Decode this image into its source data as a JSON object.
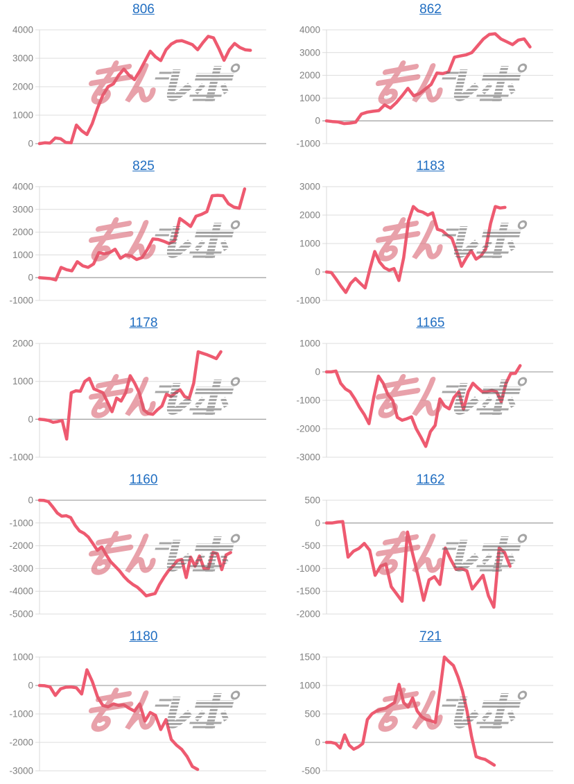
{
  "colors": {
    "line": "#ee5a70",
    "gridline": "#dcdcdc",
    "zero_line": "#a6a6a6",
    "vertical_axis": "#d9d9d9",
    "axis_label": "#7f7f7f",
    "title_link": "#1f6dc1",
    "watermark_pink": "#d85f6e",
    "watermark_gray": "#666666",
    "background": "#ffffff"
  },
  "watermark": {
    "name": "minrepo-watermark",
    "pink_text": "みん",
    "gray_text": "レポ"
  },
  "chart_data": [
    {
      "type": "line",
      "title": "806",
      "ylim": [
        0,
        4000
      ],
      "yticks": [
        4000,
        3000,
        2000,
        1000,
        0
      ],
      "x_slots": 44,
      "values": [
        0,
        30,
        20,
        200,
        170,
        40,
        30,
        650,
        450,
        320,
        700,
        1250,
        1700,
        2000,
        2100,
        2400,
        2620,
        2400,
        2250,
        2550,
        2900,
        3250,
        3050,
        2920,
        3300,
        3500,
        3600,
        3620,
        3550,
        3480,
        3300,
        3550,
        3770,
        3720,
        3350,
        2930,
        3300,
        3520,
        3380,
        3300,
        3280
      ]
    },
    {
      "type": "line",
      "title": "862",
      "ylim": [
        -1000,
        4000
      ],
      "yticks": [
        4000,
        3000,
        2000,
        1000,
        0,
        -1000
      ],
      "x_slots": 40,
      "values": [
        0,
        -30,
        -50,
        -120,
        -100,
        -60,
        300,
        380,
        420,
        450,
        700,
        560,
        800,
        1100,
        1430,
        1100,
        1200,
        1400,
        1600,
        2100,
        2080,
        2150,
        2800,
        2850,
        2900,
        3000,
        3300,
        3600,
        3800,
        3830,
        3600,
        3480,
        3350,
        3550,
        3600,
        3250
      ]
    },
    {
      "type": "line",
      "title": "825",
      "ylim": [
        -1000,
        4000
      ],
      "yticks": [
        4000,
        3000,
        2000,
        1000,
        0,
        -1000
      ],
      "x_slots": 43,
      "values": [
        0,
        -20,
        -40,
        -100,
        450,
        350,
        300,
        700,
        520,
        450,
        600,
        1100,
        1050,
        1100,
        1250,
        850,
        1000,
        950,
        800,
        880,
        1250,
        1700,
        1680,
        1600,
        1500,
        1620,
        2600,
        2430,
        2250,
        2700,
        2780,
        2900,
        3600,
        3620,
        3600,
        3250,
        3100,
        3050,
        3900
      ]
    },
    {
      "type": "line",
      "title": "1183",
      "ylim": [
        -1000,
        3000
      ],
      "yticks": [
        3000,
        2000,
        1000,
        0,
        -1000
      ],
      "x_slots": 48,
      "values": [
        0,
        -20,
        -250,
        -500,
        -720,
        -400,
        -230,
        -400,
        -560,
        100,
        720,
        350,
        150,
        60,
        120,
        -300,
        500,
        1800,
        2300,
        2150,
        2100,
        2000,
        2080,
        1500,
        1450,
        1300,
        1180,
        700,
        200,
        500,
        750,
        450,
        560,
        800,
        1700,
        2300,
        2250,
        2270
      ]
    },
    {
      "type": "line",
      "title": "1178",
      "ylim": [
        -1000,
        2000
      ],
      "yticks": [
        2000,
        1000,
        0,
        -1000
      ],
      "x_slots": 51,
      "values": [
        0,
        -10,
        -30,
        -80,
        -60,
        -30,
        -520,
        700,
        750,
        740,
        1000,
        1080,
        800,
        750,
        700,
        450,
        200,
        560,
        480,
        700,
        1150,
        950,
        700,
        250,
        150,
        130,
        250,
        350,
        660,
        600,
        700,
        780,
        600,
        550,
        950,
        1780,
        1740,
        1700,
        1650,
        1600,
        1780
      ]
    },
    {
      "type": "line",
      "title": "1165",
      "ylim": [
        -3000,
        1000
      ],
      "yticks": [
        1000,
        0,
        -1000,
        -2000,
        -3000
      ],
      "x_slots": 49,
      "values": [
        0,
        0,
        30,
        -400,
        -600,
        -700,
        -950,
        -1250,
        -1500,
        -1820,
        -900,
        -150,
        -400,
        -800,
        -1000,
        -1600,
        -1700,
        -1650,
        -1580,
        -2000,
        -2300,
        -2620,
        -2100,
        -1880,
        -950,
        -1200,
        -1300,
        -900,
        -700,
        -1320,
        -700,
        -400,
        -560,
        -700,
        -700,
        -650,
        -700,
        -1050,
        -400,
        -60,
        -50,
        220
      ]
    },
    {
      "type": "line",
      "title": "1160",
      "ylim": [
        -5000,
        0
      ],
      "yticks": [
        0,
        -1000,
        -2000,
        -3000,
        -4000,
        -5000
      ],
      "x_slots": 52,
      "values": [
        0,
        -10,
        -60,
        -300,
        -560,
        -700,
        -680,
        -760,
        -1100,
        -1350,
        -1450,
        -1620,
        -1900,
        -2200,
        -2050,
        -2400,
        -2700,
        -2900,
        -3100,
        -3350,
        -3550,
        -3700,
        -3820,
        -4000,
        -4200,
        -4150,
        -4100,
        -3700,
        -3380,
        -3100,
        -2900,
        -2650,
        -2600,
        -3400,
        -2500,
        -2900,
        -2450,
        -3000,
        -3000,
        -2300,
        -2350,
        -3050,
        -2400,
        -2300
      ]
    },
    {
      "type": "line",
      "title": "1162",
      "ylim": [
        -2000,
        500
      ],
      "yticks": [
        500,
        0,
        -500,
        -1000,
        -1500,
        -2000
      ],
      "x_slots": 43,
      "values": [
        0,
        0,
        20,
        30,
        -750,
        -620,
        -560,
        -450,
        -600,
        -1150,
        -950,
        -900,
        -1400,
        -1560,
        -1720,
        -200,
        -700,
        -1180,
        -1700,
        -1250,
        -1180,
        -1350,
        -550,
        -800,
        -1020,
        -1000,
        -1050,
        -1450,
        -1300,
        -1150,
        -1600,
        -1850,
        -550,
        -650,
        -950
      ]
    },
    {
      "type": "line",
      "title": "1180",
      "ylim": [
        -3000,
        1000
      ],
      "yticks": [
        1000,
        0,
        -1000,
        -2000,
        -3000
      ],
      "x_slots": 44,
      "values": [
        0,
        -10,
        -50,
        -350,
        -120,
        -60,
        -50,
        -80,
        -300,
        550,
        150,
        -400,
        -700,
        -750,
        -650,
        -700,
        -680,
        -800,
        -900,
        -650,
        -1250,
        -950,
        -1050,
        -1550,
        -1200,
        -1900,
        -2100,
        -2250,
        -2500,
        -2850,
        -2950
      ]
    },
    {
      "type": "line",
      "title": "721",
      "ylim": [
        -500,
        1500
      ],
      "yticks": [
        1500,
        1000,
        500,
        0,
        -500
      ],
      "x_slots": 51,
      "values": [
        0,
        0,
        -20,
        -100,
        130,
        -50,
        -120,
        -80,
        -20,
        400,
        500,
        550,
        580,
        600,
        650,
        700,
        1020,
        700,
        620,
        780,
        550,
        450,
        400,
        380,
        350,
        900,
        1500,
        1420,
        1350,
        1150,
        900,
        550,
        100,
        -250,
        -280,
        -300,
        -350,
        -400
      ]
    }
  ]
}
